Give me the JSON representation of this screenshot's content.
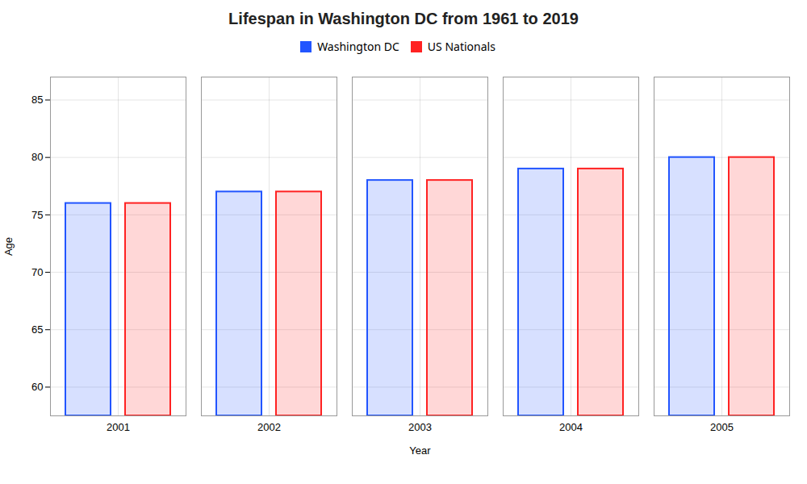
{
  "chart_data": {
    "type": "bar",
    "title": "Lifespan in Washington DC from 1961 to 2019",
    "xlabel": "Year",
    "ylabel": "Age",
    "categories": [
      2001,
      2002,
      2003,
      2004,
      2005
    ],
    "series": [
      {
        "name": "Washington DC",
        "color": "#2255ff",
        "values": [
          76,
          77,
          78,
          79,
          80
        ]
      },
      {
        "name": "US Nationals",
        "color": "#ff2222",
        "values": [
          76,
          77,
          78,
          79,
          80
        ]
      }
    ],
    "ylim": [
      57.5,
      87
    ],
    "yticks": [
      60,
      65,
      70,
      75,
      80,
      85
    ],
    "grid": true,
    "legend": "top"
  }
}
